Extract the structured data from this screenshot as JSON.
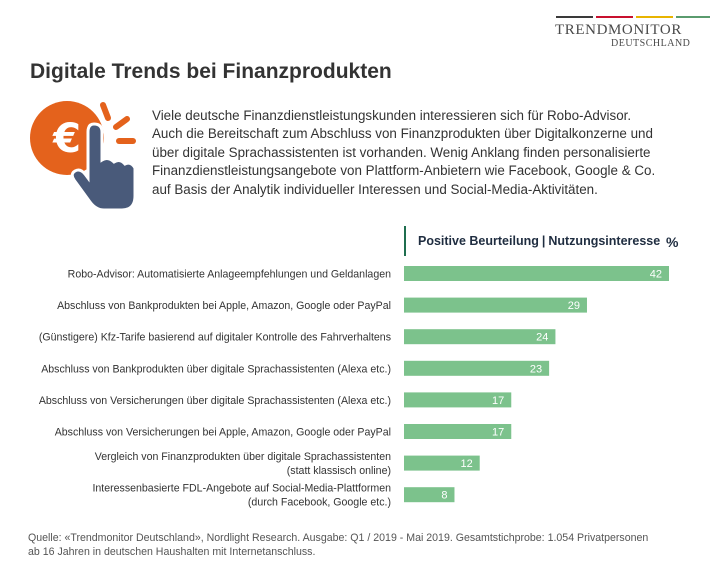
{
  "logo": {
    "name": "TRENDMONITOR",
    "sub": "DEUTSCHLAND",
    "stripe_colors": [
      "#3a3a3a",
      "#c8102e",
      "#e8b400",
      "#5a9b6e"
    ]
  },
  "title": "Digitale Trends bei Finanzprodukten",
  "icon": {
    "name": "euro-click-hand-icon",
    "symbol": "€",
    "accent": "#e4621c",
    "hand_color": "#495a7a"
  },
  "intro_lines": [
    "Viele deutsche Finanzdienstleistungskunden interessieren sich für Robo-Advisor.",
    "Auch die Bereitschaft zum Abschluss von Finanzprodukten über Digitalkonzerne und",
    "über digitale Sprachassistenten ist vorhanden. Wenig Anklang finden personalisierte",
    "Finanzdienstleistungsangebote von Plattform-Anbietern wie Facebook, Google & Co.",
    "auf Basis der Analytik individueller Interessen und Social-Media-Aktivitäten."
  ],
  "chart_data": {
    "type": "bar",
    "orientation": "horizontal",
    "legend_label": "Positive Beurteilung",
    "legend_separator": "|",
    "legend_label_2": "Nutzungsinteresse",
    "unit": "%",
    "bar_color": "#7cc28c",
    "value_label_color": "#ffffff",
    "xlim": [
      0,
      42
    ],
    "grid": false,
    "categories": [
      [
        "Robo-Advisor: Automatisierte Anlageempfehlungen und Geldanlagen"
      ],
      [
        "Abschluss von Bankprodukten bei Apple, Amazon, Google oder PayPal"
      ],
      [
        "(Günstigere) Kfz-Tarife basierend auf digitaler Kontrolle des Fahrverhaltens"
      ],
      [
        "Abschluss von Bankprodukten über digitale Sprachassistenten (Alexa etc.)"
      ],
      [
        "Abschluss von Versicherungen über digitale Sprachassistenten (Alexa etc.)"
      ],
      [
        "Abschluss von Versicherungen bei Apple, Amazon, Google oder PayPal"
      ],
      [
        "Vergleich von Finanzprodukten über digitale Sprachassistenten",
        "(statt klassisch online)"
      ],
      [
        "Interessenbasierte FDL-Angebote auf Social-Media-Plattformen",
        "(durch Facebook, Google etc.)"
      ]
    ],
    "values": [
      42,
      29,
      24,
      23,
      17,
      17,
      12,
      8
    ]
  },
  "footer_lines": [
    "Quelle: «Trendmonitor Deutschland», Nordlight Research. Ausgabe: Q1 / 2019 -  Mai 2019. Gesamtstichprobe: 1.054 Privatpersonen",
    "ab 16 Jahren in deutschen Haushalten mit Internetanschluss."
  ]
}
